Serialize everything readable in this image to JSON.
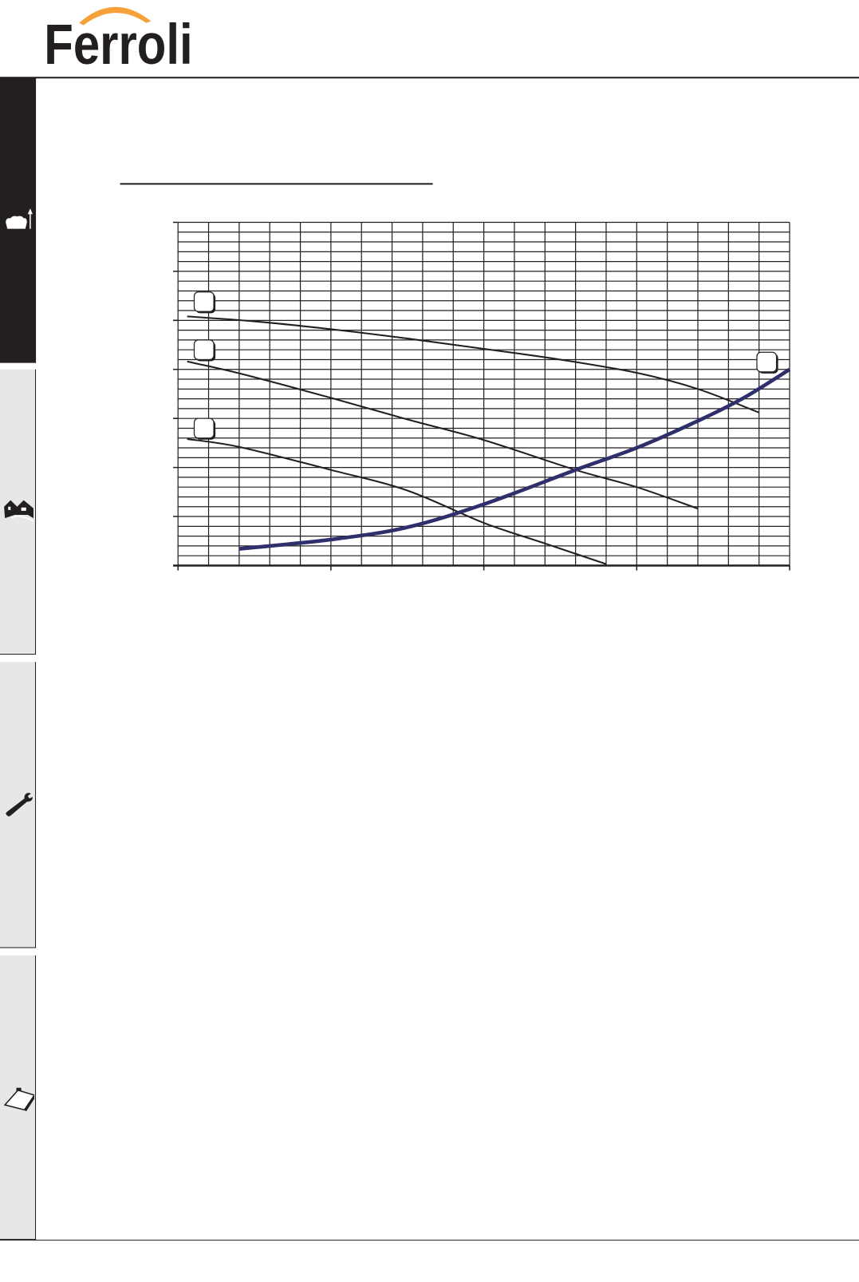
{
  "brand": {
    "logo_text": "Ferroli",
    "logo_color": "#231f20",
    "arc_color": "#f7a13a"
  },
  "sidebar": {
    "tabs": [
      {
        "icon": "armchair-lamp-icon",
        "active": true
      },
      {
        "icon": "houses-icon",
        "active": false
      },
      {
        "icon": "wrench-icon",
        "active": false
      },
      {
        "icon": "clipboard-icon",
        "active": false
      }
    ],
    "active_color": "#231f20",
    "inactive_color": "#e6e7e8"
  },
  "chart_data": {
    "type": "line",
    "title": "",
    "xlabel": "",
    "ylabel": "",
    "xlim": [
      0,
      4
    ],
    "ylim": [
      0,
      7
    ],
    "x_major_ticks": 4,
    "y_major_ticks": 7,
    "x_minor_per_major": 5,
    "y_minor_per_major": 5,
    "grid": true,
    "series": [
      {
        "label_box": "",
        "color": "#231f20",
        "points": [
          [
            0.06,
            5.08
          ],
          [
            0.5,
            4.98
          ],
          [
            1,
            4.82
          ],
          [
            1.5,
            4.63
          ],
          [
            2,
            4.42
          ],
          [
            2.5,
            4.2
          ],
          [
            3,
            3.93
          ],
          [
            3.4,
            3.6
          ],
          [
            3.8,
            3.12
          ]
        ]
      },
      {
        "label_box": "",
        "color": "#231f20",
        "points": [
          [
            0.06,
            4.16
          ],
          [
            0.4,
            3.92
          ],
          [
            1,
            3.42
          ],
          [
            1.5,
            2.98
          ],
          [
            2,
            2.56
          ],
          [
            2.6,
            1.95
          ],
          [
            3,
            1.6
          ],
          [
            3.4,
            1.16
          ]
        ]
      },
      {
        "label_box": "",
        "color": "#231f20",
        "points": [
          [
            0.06,
            2.58
          ],
          [
            0.4,
            2.42
          ],
          [
            1,
            1.95
          ],
          [
            1.5,
            1.53
          ],
          [
            2,
            0.87
          ],
          [
            2.4,
            0.45
          ],
          [
            2.8,
            0.03
          ]
        ]
      },
      {
        "label_box": "",
        "color": "#2e2f6b",
        "points": [
          [
            0.4,
            0.34
          ],
          [
            1,
            0.53
          ],
          [
            1.5,
            0.78
          ],
          [
            2,
            1.25
          ],
          [
            2.6,
            1.95
          ],
          [
            3,
            2.4
          ],
          [
            3.4,
            2.95
          ],
          [
            3.7,
            3.42
          ],
          [
            4,
            4.0
          ]
        ]
      }
    ]
  }
}
